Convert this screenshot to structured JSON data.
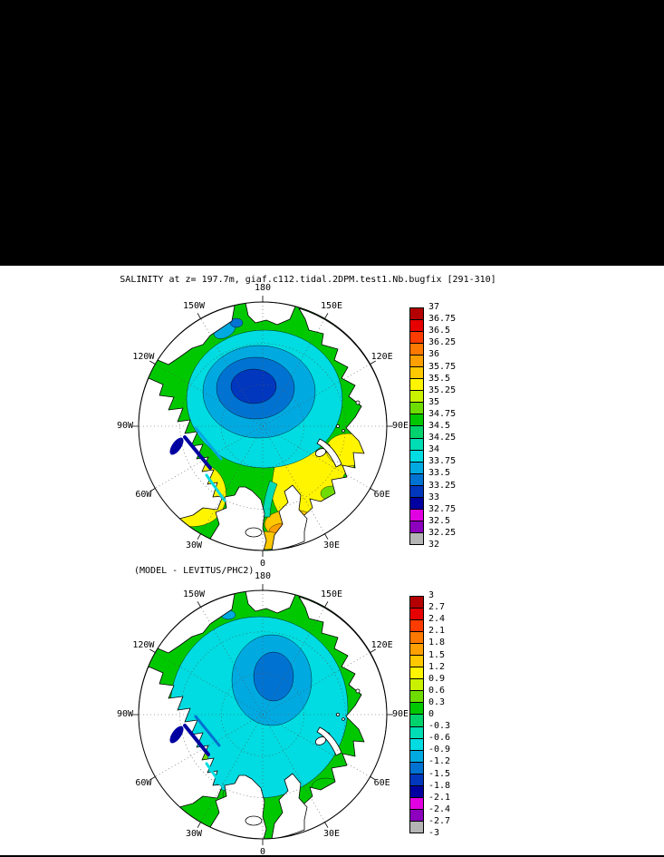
{
  "title": "SALINITY at z= 197.7m, giaf.c112.tidal.2DPM.test1.Nb.bugfix [291-310]",
  "subtitle": "(MODEL - LEVITUS/PHC2)",
  "ring_labels": [
    "180",
    "150E",
    "120E",
    "90E",
    "60E",
    "30E",
    "0",
    "30W",
    "60W",
    "90W",
    "120W",
    "150W"
  ],
  "colorbar_top": {
    "labels": [
      "37",
      "36.75",
      "36.5",
      "36.25",
      "36",
      "35.75",
      "35.5",
      "35.25",
      "35",
      "34.75",
      "34.5",
      "34.25",
      "34",
      "33.75",
      "33.5",
      "33.25",
      "33",
      "32.75",
      "32.5",
      "32.25",
      "32"
    ],
    "colors": [
      "#b40000",
      "#e60000",
      "#ff3c00",
      "#ff7800",
      "#ffa000",
      "#ffc800",
      "#fff500",
      "#c8f000",
      "#6edc00",
      "#00c800",
      "#00d26e",
      "#00dcb4",
      "#00dce1",
      "#00aae1",
      "#0073d2",
      "#0037be",
      "#0000a0",
      "#e100e1",
      "#8c00be",
      "#b4b4b4"
    ]
  },
  "colorbar_bottom": {
    "labels": [
      "3",
      "2.7",
      "2.4",
      "2.1",
      "1.8",
      "1.5",
      "1.2",
      "0.9",
      "0.6",
      "0.3",
      "0",
      "-0.3",
      "-0.6",
      "-0.9",
      "-1.2",
      "-1.5",
      "-1.8",
      "-2.1",
      "-2.4",
      "-2.7",
      "-3"
    ],
    "colors": [
      "#b40000",
      "#e60000",
      "#ff3c00",
      "#ff7800",
      "#ffa000",
      "#ffc800",
      "#fff500",
      "#c8f000",
      "#6edc00",
      "#00c800",
      "#00d26e",
      "#00dcb4",
      "#00dce1",
      "#00aae1",
      "#0073d2",
      "#0037be",
      "#0000a0",
      "#e100e1",
      "#8c00be",
      "#b4b4b4"
    ]
  },
  "chart_data": [
    {
      "type": "heatmap",
      "subtype": "polar-stereographic-filled-contour-map",
      "title": "SALINITY at z= 197.7m, giaf.c112.tidal.2DPM.test1.Nb.bugfix [291-310]",
      "variable": "SALINITY",
      "depth_label": "z= 197.7m",
      "experiment_id": "giaf.c112.tidal.2DPM.test1.Nb.bugfix",
      "record_window": "291-310",
      "region": "Arctic Ocean, north polar view",
      "longitude_ring_labels": [
        "180",
        "150E",
        "120E",
        "90E",
        "60E",
        "30E",
        "0",
        "30W",
        "60W",
        "90W",
        "120W",
        "150W"
      ],
      "colorbar": {
        "orientation": "vertical",
        "position": "right",
        "min": 32,
        "max": 37,
        "interval": 0.25,
        "tick_labels": [
          "37",
          "36.75",
          "36.5",
          "36.25",
          "36",
          "35.75",
          "35.5",
          "35.25",
          "35",
          "34.75",
          "34.5",
          "34.25",
          "34",
          "33.75",
          "33.5",
          "33.25",
          "33",
          "32.75",
          "32.5",
          "32.25",
          "32"
        ],
        "colors_top_to_bottom": [
          "#b40000",
          "#e60000",
          "#ff3c00",
          "#ff7800",
          "#ffa000",
          "#ffc800",
          "#fff500",
          "#c8f000",
          "#6edc00",
          "#00c800",
          "#00d26e",
          "#00dcb4",
          "#00dce1",
          "#00aae1",
          "#0073d2",
          "#0037be",
          "#0000a0",
          "#e100e1",
          "#8c00be",
          "#b4b4b4"
        ]
      },
      "visible_pattern": "Central Arctic basin ~33-34 (cyan/blue concentric pool), surrounding shelf ~34.5-35 (green), Barents/Kara sector ~35-35.25 (yellow), Norwegian and Labrador/Baffin sectors ~35.5-36 (orange), low-salinity (<33) dark blue patches in Canadian Archipelago channels and Bering Strait"
    },
    {
      "type": "heatmap",
      "subtype": "polar-stereographic-filled-contour-map",
      "title": "(MODEL - LEVITUS/PHC2)",
      "variable": "SALINITY difference, model minus LEVITUS/PHC2",
      "region": "Arctic Ocean, north polar view",
      "longitude_ring_labels": [
        "180",
        "150E",
        "120E",
        "90E",
        "60E",
        "30E",
        "0",
        "30W",
        "60W",
        "90W",
        "120W",
        "150W"
      ],
      "colorbar": {
        "orientation": "vertical",
        "position": "right",
        "min": -3,
        "max": 3,
        "interval": 0.3,
        "tick_labels": [
          "3",
          "2.7",
          "2.4",
          "2.1",
          "1.8",
          "1.5",
          "1.2",
          "0.9",
          "0.6",
          "0.3",
          "0",
          "-0.3",
          "-0.6",
          "-0.9",
          "-1.2",
          "-1.5",
          "-1.8",
          "-2.1",
          "-2.4",
          "-2.7",
          "-3"
        ],
        "colors_top_to_bottom": [
          "#b40000",
          "#e60000",
          "#ff3c00",
          "#ff7800",
          "#ffa000",
          "#ffc800",
          "#fff500",
          "#c8f000",
          "#6edc00",
          "#00c800",
          "#00d26e",
          "#00dcb4",
          "#00dce1",
          "#00aae1",
          "#0073d2",
          "#0037be",
          "#0000a0",
          "#e100e1",
          "#8c00be",
          "#b4b4b4"
        ]
      },
      "visible_pattern": "Mostly small differences: near-zero to -0.6 (cyan) over central Arctic with a -0.9 to -1.2 (light blue) pool near the pole, slightly positive (green) around the periphery, isolated positive (yellow/orange) and strongly negative (navy) spots in the Canadian Archipelago and Bering Strait"
    }
  ]
}
